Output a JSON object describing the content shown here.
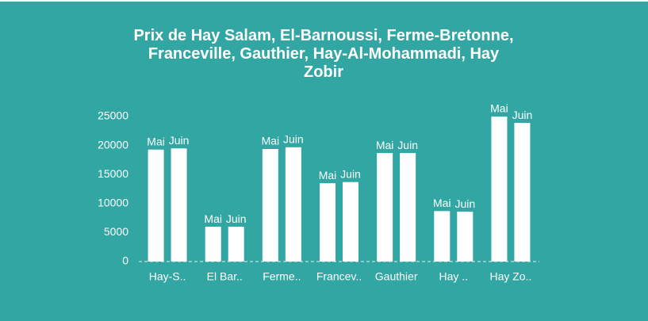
{
  "chart_data": {
    "type": "bar",
    "title": "Prix de Hay Salam, El-Barnoussi, Ferme-Bretonne, Franceville, Gauthier, Hay-Al-Mohammadi, Hay Zobir",
    "categories": [
      "Hay-S..",
      "El Bar..",
      "Ferme..",
      "Francev..",
      "Gauthier",
      "Hay ..",
      "Hay Zo.."
    ],
    "series": [
      {
        "name": "Mai",
        "color": "#ffffff",
        "values": [
          19300,
          6000,
          19400,
          13500,
          18700,
          8700,
          25000
        ]
      },
      {
        "name": "Juin",
        "color": "#ffffff",
        "values": [
          19500,
          6000,
          19700,
          13700,
          18700,
          8600,
          23900
        ]
      }
    ],
    "ylim": [
      0,
      25000
    ],
    "yticks": [
      0,
      5000,
      10000,
      15000,
      20000,
      25000
    ],
    "grid": false
  }
}
